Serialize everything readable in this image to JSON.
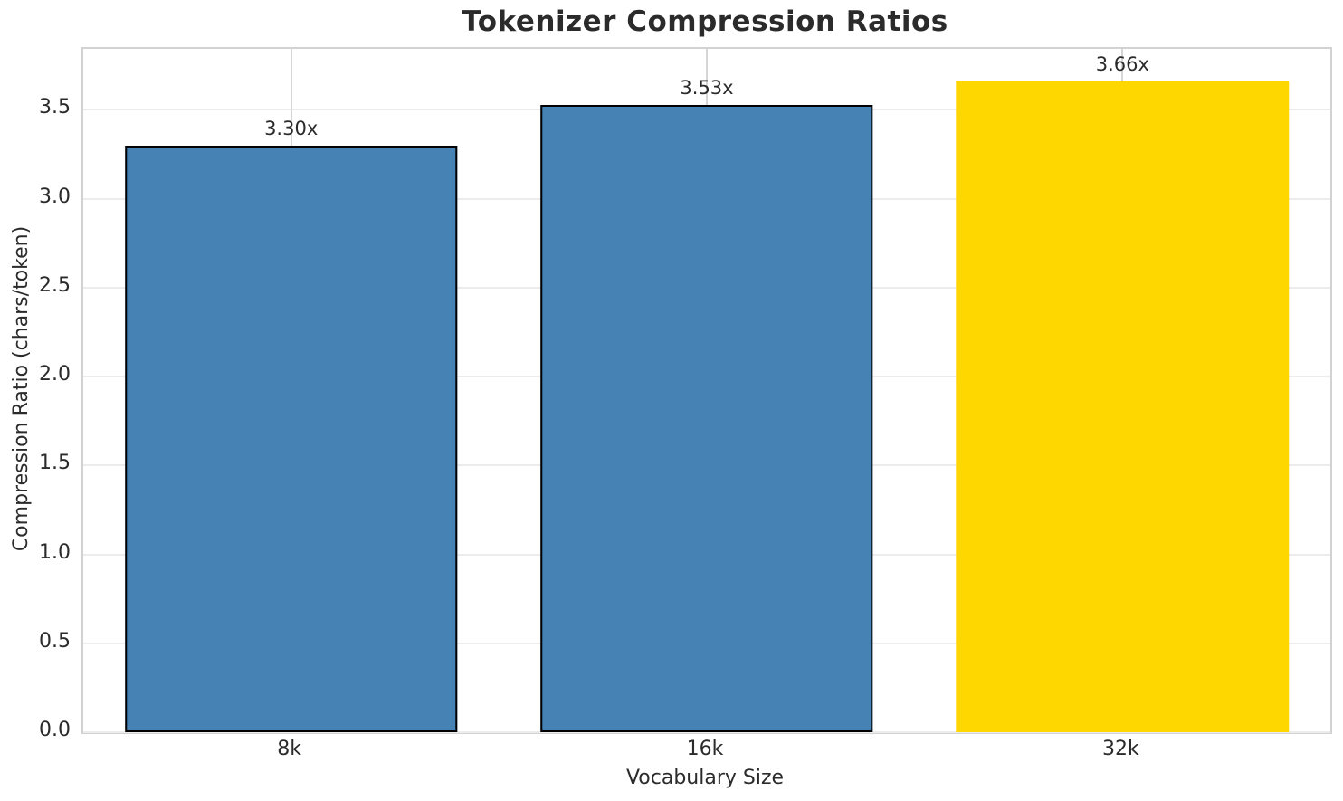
{
  "chart_data": {
    "type": "bar",
    "title": "Tokenizer Compression Ratios",
    "xlabel": "Vocabulary Size",
    "ylabel": "Compression Ratio (chars/token)",
    "categories": [
      "8k",
      "16k",
      "32k"
    ],
    "values": [
      3.3,
      3.53,
      3.66
    ],
    "bar_labels": [
      "3.30x",
      "3.53x",
      "3.66x"
    ],
    "bar_colors": [
      "#4682B4",
      "#4682B4",
      "#FFD700"
    ],
    "bar_edge_colors": [
      "#000000",
      "#000000",
      "none"
    ],
    "bar_width_fraction": 0.8,
    "ylim": [
      0,
      3.843
    ],
    "yticks": [
      "0.0",
      "0.5",
      "1.0",
      "1.5",
      "2.0",
      "2.5",
      "3.0",
      "3.5"
    ],
    "grid": true,
    "grid_axes": "both",
    "legend": false,
    "highlight_category": "32k",
    "colors": {
      "bar_default": "#4682B4",
      "bar_highlight": "#FFD700",
      "bar_edge": "#000000",
      "text": "#2b2b2b"
    }
  }
}
